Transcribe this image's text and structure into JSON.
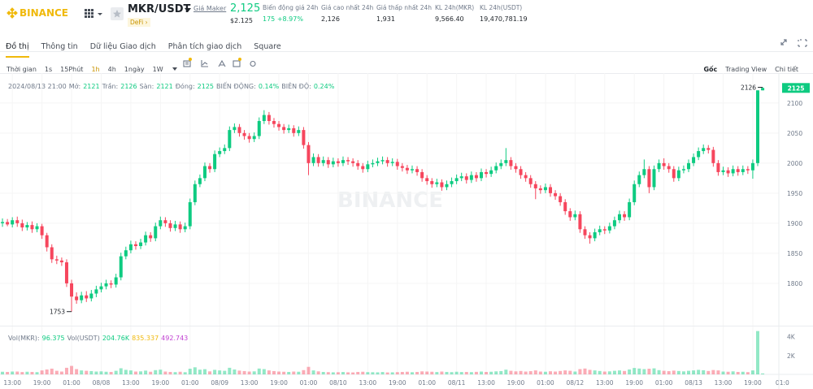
{
  "header": {
    "logo": "BINANCE",
    "pair": "MKR/USDT",
    "coin_link": "Giá Maker",
    "tag": "DeFi",
    "price": "2,125",
    "price_usd": "$2.125",
    "stats": [
      {
        "label": "Biến động giá 24h",
        "value": "175 +8.97%"
      },
      {
        "label": "Giá cao nhất 24h",
        "value": "2,126"
      },
      {
        "label": "Giá thấp nhất 24h",
        "value": "1,931"
      },
      {
        "label": "KL 24h(MKR)",
        "value": "9,566.40"
      },
      {
        "label": "KL 24h(USDT)",
        "value": "19,470,781.19"
      }
    ]
  },
  "tabs": {
    "items": [
      "Đồ thị",
      "Thông tin",
      "Dữ liệu Giao dịch",
      "Phân tích giao dịch",
      "Square"
    ],
    "active": 0
  },
  "toolbar": {
    "intervals": [
      "Thời gian",
      "1s",
      "15Phút",
      "1h",
      "4h",
      "1ngày",
      "1W"
    ],
    "active": 3,
    "views": [
      "Gốc",
      "Trading View",
      "Chi tiết"
    ],
    "active_view": 0
  },
  "chart": {
    "type": "candlestick",
    "watermark": "BINANCE",
    "up_color": "#0ecb81",
    "down_color": "#f6465d",
    "grid": true,
    "legend": {
      "time": "2024/08/13 21:00",
      "labels": [
        "Mở:",
        "Trần:",
        "Sàn:",
        "Đóng:"
      ],
      "change_label": "BIẾN ĐỘNG:",
      "change": "0.14%",
      "amplitude_label": "BIÊN ĐỘ:",
      "amplitude": "0.24%"
    },
    "volume_legend": {
      "label_base": "Vol(MKR):",
      "label_quote": "Vol(USDT)",
      "quote": "204.76K",
      "ma1": "835.337",
      "ma2": "492.743"
    },
    "xlim": [
      -0.5,
      164.2
    ],
    "ylim": [
      1731,
      2147
    ],
    "yticks": [
      1800,
      1850,
      1900,
      1950,
      2000,
      2050,
      2100
    ],
    "vol_ylim": [
      0,
      5000
    ],
    "vol_ticks": [
      {
        "value": 2000,
        "label": "2K"
      },
      {
        "value": 4000,
        "label": "4K"
      }
    ],
    "xticks": [
      {
        "value": 2,
        "label": "13:00"
      },
      {
        "value": 8,
        "label": "19:00"
      },
      {
        "value": 14,
        "label": "01:00"
      },
      {
        "value": 20,
        "label": "08/08"
      },
      {
        "value": 26,
        "label": "13:00"
      },
      {
        "value": 32,
        "label": "19:00"
      },
      {
        "value": 38,
        "label": "01:00"
      },
      {
        "value": 44,
        "label": "08/09"
      },
      {
        "value": 50,
        "label": "13:00"
      },
      {
        "value": 56,
        "label": "19:00"
      },
      {
        "value": 62,
        "label": "01:00"
      },
      {
        "value": 68,
        "label": "08/10"
      },
      {
        "value": 74,
        "label": "13:00"
      },
      {
        "value": 80,
        "label": "19:00"
      },
      {
        "value": 86,
        "label": "01:00"
      },
      {
        "value": 92,
        "label": "08/11"
      },
      {
        "value": 98,
        "label": "13:00"
      },
      {
        "value": 104,
        "label": "19:00"
      },
      {
        "value": 110,
        "label": "01:00"
      },
      {
        "value": 116,
        "label": "08/12"
      },
      {
        "value": 122,
        "label": "13:00"
      },
      {
        "value": 128,
        "label": "19:00"
      },
      {
        "value": 134,
        "label": "01:00"
      },
      {
        "value": 140,
        "label": "08/13"
      },
      {
        "value": 146,
        "label": "13:00"
      },
      {
        "value": 152,
        "label": "19:00"
      },
      {
        "value": 158,
        "label": "01:0"
      }
    ],
    "candles": [
      [
        1900,
        1908,
        1894,
        1902
      ],
      [
        1902,
        1907,
        1895,
        1898
      ],
      [
        1898,
        1910,
        1893,
        1905
      ],
      [
        1905,
        1911,
        1894,
        1900
      ],
      [
        1900,
        1906,
        1887,
        1893
      ],
      [
        1893,
        1902,
        1888,
        1897
      ],
      [
        1897,
        1903,
        1884,
        1890
      ],
      [
        1890,
        1900,
        1885,
        1895
      ],
      [
        1895,
        1899,
        1874,
        1880
      ],
      [
        1880,
        1884,
        1853,
        1860
      ],
      [
        1860,
        1865,
        1834,
        1840
      ],
      [
        1840,
        1846,
        1832,
        1838
      ],
      [
        1838,
        1843,
        1829,
        1835
      ],
      [
        1835,
        1840,
        1794,
        1800
      ],
      [
        1800,
        1806,
        1753,
        1778
      ],
      [
        1778,
        1785,
        1766,
        1772
      ],
      [
        1772,
        1786,
        1767,
        1780
      ],
      [
        1780,
        1787,
        1769,
        1775
      ],
      [
        1775,
        1789,
        1770,
        1783
      ],
      [
        1783,
        1796,
        1777,
        1790
      ],
      [
        1790,
        1801,
        1785,
        1795
      ],
      [
        1795,
        1806,
        1790,
        1800
      ],
      [
        1800,
        1805,
        1792,
        1798
      ],
      [
        1798,
        1816,
        1793,
        1810
      ],
      [
        1810,
        1851,
        1805,
        1845
      ],
      [
        1845,
        1861,
        1840,
        1855
      ],
      [
        1855,
        1871,
        1850,
        1865
      ],
      [
        1865,
        1870,
        1856,
        1862
      ],
      [
        1862,
        1874,
        1857,
        1868
      ],
      [
        1868,
        1886,
        1863,
        1880
      ],
      [
        1880,
        1885,
        1869,
        1875
      ],
      [
        1875,
        1901,
        1870,
        1895
      ],
      [
        1895,
        1911,
        1890,
        1905
      ],
      [
        1905,
        1910,
        1894,
        1900
      ],
      [
        1900,
        1905,
        1886,
        1892
      ],
      [
        1892,
        1904,
        1887,
        1898
      ],
      [
        1898,
        1903,
        1884,
        1890
      ],
      [
        1890,
        1901,
        1885,
        1895
      ],
      [
        1895,
        1941,
        1890,
        1935
      ],
      [
        1935,
        1971,
        1930,
        1965
      ],
      [
        1965,
        1981,
        1960,
        1975
      ],
      [
        1975,
        2001,
        1970,
        1995
      ],
      [
        1995,
        2000,
        1984,
        1990
      ],
      [
        1990,
        2021,
        1985,
        2015
      ],
      [
        2015,
        2026,
        2010,
        2020
      ],
      [
        2020,
        2031,
        2015,
        2025
      ],
      [
        2025,
        2061,
        2020,
        2055
      ],
      [
        2055,
        2066,
        2050,
        2060
      ],
      [
        2060,
        2065,
        2044,
        2050
      ],
      [
        2050,
        2055,
        2039,
        2045
      ],
      [
        2045,
        2050,
        2034,
        2040
      ],
      [
        2040,
        2051,
        2035,
        2045
      ],
      [
        2045,
        2076,
        2040,
        2070
      ],
      [
        2070,
        2088,
        2065,
        2080
      ],
      [
        2080,
        2085,
        2064,
        2070
      ],
      [
        2070,
        2075,
        2059,
        2065
      ],
      [
        2065,
        2070,
        2054,
        2060
      ],
      [
        2060,
        2065,
        2049,
        2055
      ],
      [
        2055,
        2064,
        2050,
        2058
      ],
      [
        2058,
        2063,
        2044,
        2050
      ],
      [
        2050,
        2061,
        2045,
        2055
      ],
      [
        2055,
        2060,
        2024,
        2030
      ],
      [
        2030,
        2035,
        1980,
        2000
      ],
      [
        2000,
        2016,
        1995,
        2010
      ],
      [
        2010,
        2015,
        1994,
        2000
      ],
      [
        2000,
        2011,
        1995,
        2005
      ],
      [
        2005,
        2010,
        1992,
        1998
      ],
      [
        1998,
        2009,
        1993,
        2003
      ],
      [
        2003,
        2008,
        1994,
        2000
      ],
      [
        2000,
        2011,
        1995,
        2005
      ],
      [
        2005,
        2010,
        1997,
        2003
      ],
      [
        2003,
        2008,
        1994,
        2000
      ],
      [
        2000,
        2005,
        1989,
        1995
      ],
      [
        1995,
        2000,
        1984,
        1990
      ],
      [
        1990,
        2004,
        1985,
        1998
      ],
      [
        1998,
        2006,
        1993,
        2000
      ],
      [
        2000,
        2009,
        1995,
        2003
      ],
      [
        2003,
        2011,
        1998,
        2005
      ],
      [
        2005,
        2010,
        1994,
        2000
      ],
      [
        2000,
        2008,
        1995,
        2002
      ],
      [
        2002,
        2007,
        1989,
        1995
      ],
      [
        1995,
        2000,
        1986,
        1992
      ],
      [
        1992,
        1997,
        1982,
        1988
      ],
      [
        1988,
        1996,
        1983,
        1990
      ],
      [
        1990,
        1995,
        1979,
        1985
      ],
      [
        1985,
        1990,
        1969,
        1975
      ],
      [
        1975,
        1980,
        1964,
        1970
      ],
      [
        1970,
        1975,
        1959,
        1965
      ],
      [
        1965,
        1974,
        1960,
        1968
      ],
      [
        1968,
        1973,
        1954,
        1960
      ],
      [
        1960,
        1971,
        1955,
        1965
      ],
      [
        1965,
        1976,
        1960,
        1970
      ],
      [
        1970,
        1981,
        1965,
        1975
      ],
      [
        1975,
        1984,
        1970,
        1978
      ],
      [
        1978,
        1983,
        1966,
        1972
      ],
      [
        1972,
        1986,
        1967,
        1980
      ],
      [
        1980,
        1985,
        1969,
        1975
      ],
      [
        1975,
        1991,
        1970,
        1985
      ],
      [
        1985,
        1990,
        1976,
        1982
      ],
      [
        1982,
        1994,
        1977,
        1988
      ],
      [
        1988,
        2001,
        1983,
        1995
      ],
      [
        1995,
        2006,
        1990,
        2000
      ],
      [
        2000,
        2025,
        1995,
        2005
      ],
      [
        2005,
        2010,
        1989,
        1995
      ],
      [
        1995,
        2000,
        1984,
        1990
      ],
      [
        1990,
        1995,
        1974,
        1980
      ],
      [
        1980,
        1985,
        1969,
        1975
      ],
      [
        1975,
        1980,
        1959,
        1965
      ],
      [
        1965,
        1970,
        1940,
        1958
      ],
      [
        1958,
        1963,
        1949,
        1955
      ],
      [
        1955,
        1966,
        1950,
        1960
      ],
      [
        1960,
        1965,
        1944,
        1950
      ],
      [
        1950,
        1955,
        1939,
        1945
      ],
      [
        1945,
        1950,
        1929,
        1935
      ],
      [
        1935,
        1940,
        1914,
        1920
      ],
      [
        1920,
        1925,
        1904,
        1910
      ],
      [
        1910,
        1921,
        1905,
        1915
      ],
      [
        1915,
        1920,
        1884,
        1890
      ],
      [
        1890,
        1895,
        1874,
        1880
      ],
      [
        1880,
        1885,
        1866,
        1875
      ],
      [
        1875,
        1891,
        1870,
        1885
      ],
      [
        1885,
        1896,
        1880,
        1890
      ],
      [
        1890,
        1895,
        1882,
        1888
      ],
      [
        1888,
        1901,
        1883,
        1895
      ],
      [
        1895,
        1911,
        1890,
        1905
      ],
      [
        1905,
        1921,
        1900,
        1915
      ],
      [
        1915,
        1920,
        1904,
        1910
      ],
      [
        1910,
        1941,
        1905,
        1935
      ],
      [
        1935,
        1971,
        1930,
        1965
      ],
      [
        1965,
        1986,
        1960,
        1980
      ],
      [
        1980,
        2006,
        1975,
        1990
      ],
      [
        1990,
        1995,
        1950,
        1960
      ],
      [
        1960,
        1996,
        1955,
        1990
      ],
      [
        1990,
        2006,
        1985,
        2000
      ],
      [
        2000,
        2008,
        1989,
        1995
      ],
      [
        1995,
        2000,
        1984,
        1990
      ],
      [
        1990,
        1995,
        1969,
        1975
      ],
      [
        1975,
        1994,
        1970,
        1988
      ],
      [
        1988,
        1996,
        1983,
        1990
      ],
      [
        1990,
        2006,
        1985,
        2000
      ],
      [
        2000,
        2016,
        1995,
        2010
      ],
      [
        2010,
        2026,
        2005,
        2020
      ],
      [
        2020,
        2031,
        2015,
        2025
      ],
      [
        2025,
        2030,
        2016,
        2022
      ],
      [
        2022,
        2027,
        1994,
        2000
      ],
      [
        2000,
        2005,
        1979,
        1985
      ],
      [
        1985,
        1994,
        1980,
        1988
      ],
      [
        1988,
        1993,
        1977,
        1983
      ],
      [
        1983,
        1996,
        1978,
        1990
      ],
      [
        1990,
        1995,
        1979,
        1985
      ],
      [
        1985,
        1996,
        1980,
        1990
      ],
      [
        1990,
        1995,
        1982,
        1988
      ],
      [
        1988,
        2006,
        1974,
        2000
      ],
      [
        2000,
        2121,
        1995,
        2121
      ],
      [
        2121,
        2126,
        2121,
        2125
      ]
    ],
    "volumes": [
      280,
      260,
      300,
      300,
      250,
      280,
      260,
      240,
      420,
      520,
      610,
      380,
      300,
      700,
      900,
      560,
      420,
      380,
      350,
      300,
      320,
      280,
      260,
      380,
      650,
      480,
      420,
      300,
      320,
      400,
      280,
      450,
      500,
      300,
      260,
      240,
      280,
      230,
      600,
      750,
      500,
      550,
      320,
      480,
      420,
      380,
      700,
      520,
      400,
      350,
      300,
      320,
      620,
      560,
      420,
      350,
      300,
      280,
      260,
      300,
      280,
      450,
      800,
      420,
      320,
      260,
      240,
      220,
      230,
      250,
      220,
      210,
      260,
      280,
      240,
      230,
      220,
      250,
      210,
      220,
      240,
      260,
      280,
      230,
      260,
      320,
      300,
      280,
      250,
      300,
      260,
      240,
      280,
      250,
      260,
      240,
      270,
      300,
      260,
      280,
      320,
      350,
      500,
      380,
      320,
      360,
      300,
      340,
      420,
      300,
      280,
      330,
      300,
      360,
      420,
      380,
      300,
      560,
      620,
      480,
      420,
      360,
      300,
      320,
      380,
      420,
      360,
      520,
      680,
      620,
      560,
      600,
      640,
      450,
      380,
      340,
      400,
      360,
      320,
      380,
      420,
      480,
      440,
      360,
      460,
      420,
      300,
      280,
      320,
      260,
      280,
      240,
      420,
      4600,
      96.375
    ]
  }
}
